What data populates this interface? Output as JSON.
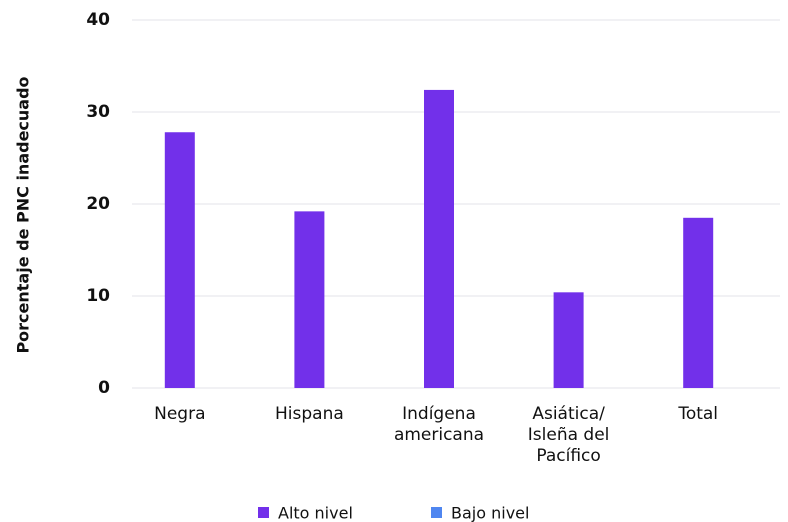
{
  "chart_data": {
    "type": "bar",
    "y_label": "Porcentaje de PNC inadecuado",
    "categories": [
      "Negra",
      "Hispana",
      "Indígena\namericana",
      "Asiática/\nIsleña del\nPacífico",
      "Total"
    ],
    "series": [
      {
        "name": "Alto nivel",
        "color": "#7230ea",
        "values": [
          27.8,
          19.2,
          32.4,
          10.4,
          18.5
        ]
      },
      {
        "name": "Bajo nivel",
        "color": "#4f86f0",
        "values": [
          null,
          null,
          null,
          null,
          null
        ]
      }
    ],
    "ylim": [
      0,
      40
    ],
    "yticks": [
      0,
      10,
      20,
      30,
      40
    ],
    "grid": true
  }
}
